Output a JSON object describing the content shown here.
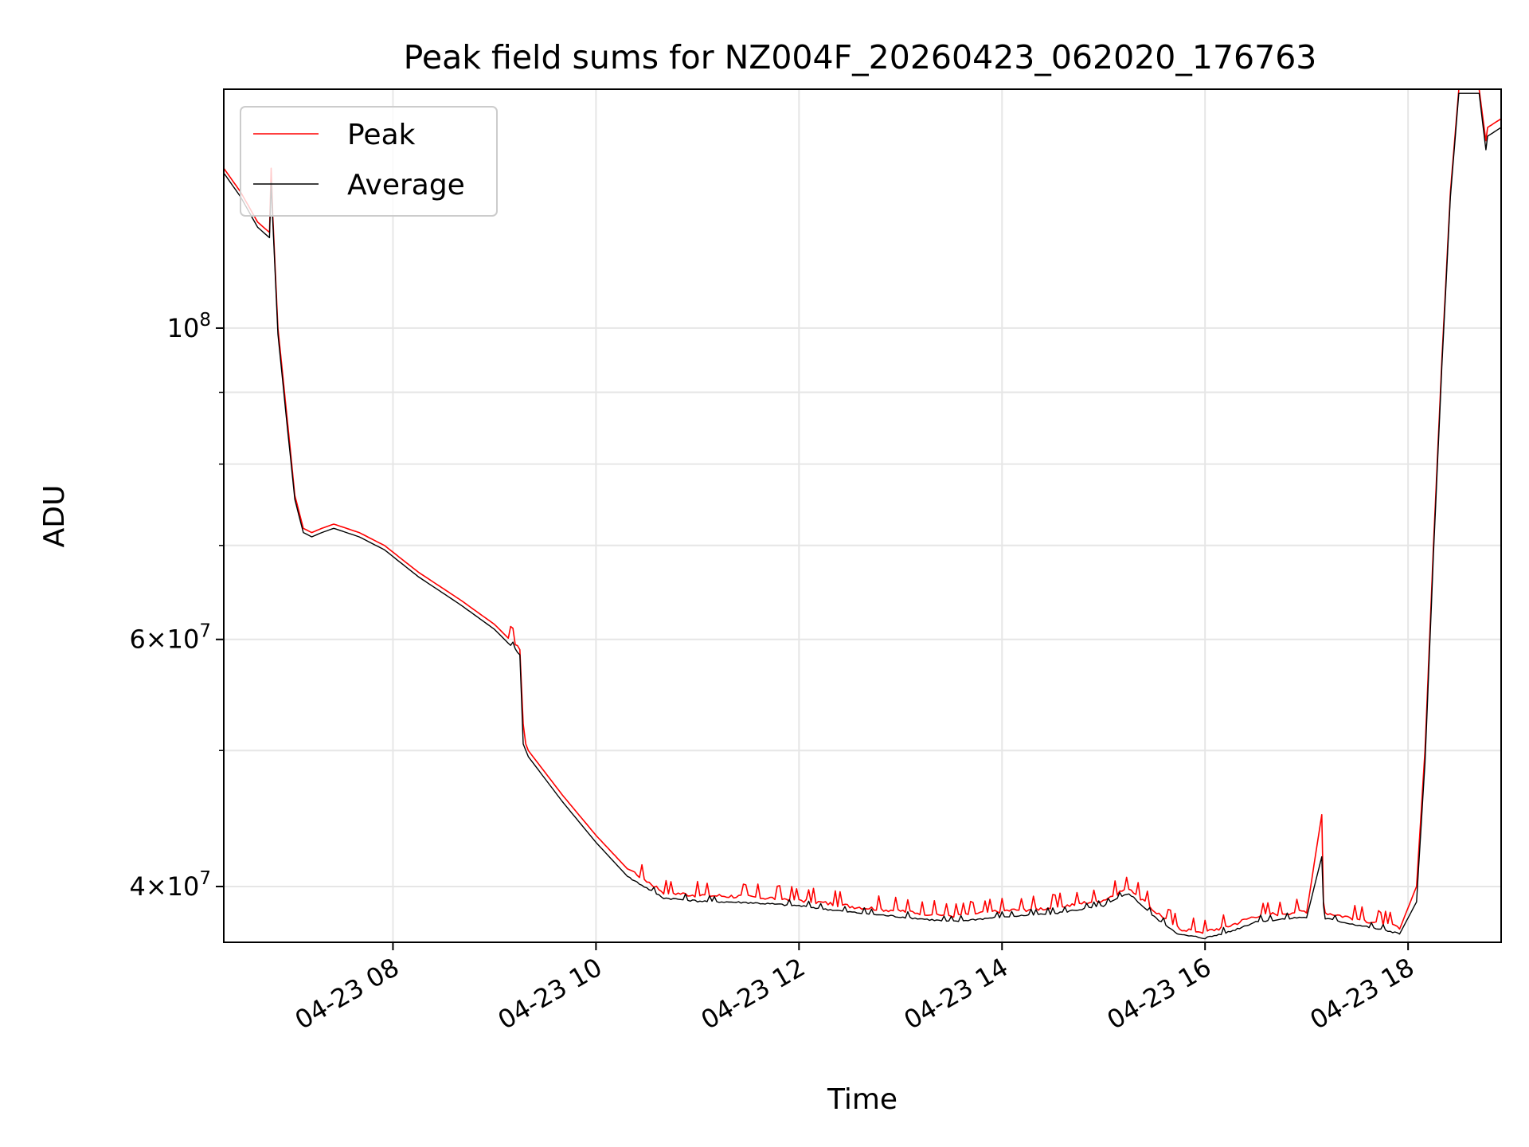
{
  "chart_data": {
    "type": "line",
    "title": "Peak field sums for NZ004F_20260423_062020_176763",
    "xlabel": "Time",
    "ylabel": "ADU",
    "x_type": "time",
    "xlim": [
      "2026-04-23 06:20",
      "2026-04-23 18:55"
    ],
    "ylim": [
      36500000,
      148000000
    ],
    "yscale": "log",
    "grid": true,
    "legend_position": "top-left",
    "x_ticks": [
      "2026-04-23 08:00",
      "2026-04-23 10:00",
      "2026-04-23 12:00",
      "2026-04-23 14:00",
      "2026-04-23 16:00",
      "2026-04-23 18:00"
    ],
    "x_tick_labels": [
      "04-23 08",
      "04-23 10",
      "04-23 12",
      "04-23 14",
      "04-23 16",
      "04-23 18"
    ],
    "y_major_ticks": [
      {
        "value": 100000000,
        "mantissa": "",
        "exponent": "8"
      },
      {
        "value": 60000000,
        "mantissa": "6",
        "exponent": "7"
      },
      {
        "value": 40000000,
        "mantissa": "4",
        "exponent": "7"
      }
    ],
    "y_minor_ticks": [
      90000000,
      80000000,
      70000000,
      50000000
    ],
    "series": [
      {
        "name": "Peak",
        "color": "#ff0000",
        "x": [
          "2026-04-23 06:20",
          "2026-04-23 06:30",
          "2026-04-23 06:40",
          "2026-04-23 06:47",
          "2026-04-23 06:48",
          "2026-04-23 06:49",
          "2026-04-23 06:52",
          "2026-04-23 06:58",
          "2026-04-23 07:02",
          "2026-04-23 07:07",
          "2026-04-23 07:12",
          "2026-04-23 07:18",
          "2026-04-23 07:25",
          "2026-04-23 07:40",
          "2026-04-23 07:55",
          "2026-04-23 08:15",
          "2026-04-23 08:40",
          "2026-04-23 09:00",
          "2026-04-23 09:15",
          "2026-04-23 09:17",
          "2026-04-23 09:20",
          "2026-04-23 09:40",
          "2026-04-23 10:00",
          "2026-04-23 10:20",
          "2026-04-23 10:40",
          "2026-04-23 11:00",
          "2026-04-23 11:30",
          "2026-04-23 12:00",
          "2026-04-23 12:30",
          "2026-04-23 13:00",
          "2026-04-23 13:30",
          "2026-04-23 14:00",
          "2026-04-23 14:30",
          "2026-04-23 15:00",
          "2026-04-23 15:15",
          "2026-04-23 15:30",
          "2026-04-23 15:45",
          "2026-04-23 16:00",
          "2026-04-23 16:15",
          "2026-04-23 16:30",
          "2026-04-23 17:00",
          "2026-04-23 17:09",
          "2026-04-23 17:10",
          "2026-04-23 17:11",
          "2026-04-23 17:30",
          "2026-04-23 17:55",
          "2026-04-23 18:05",
          "2026-04-23 18:10",
          "2026-04-23 18:15",
          "2026-04-23 18:20",
          "2026-04-23 18:25",
          "2026-04-23 18:30",
          "2026-04-23 18:38",
          "2026-04-23 18:42",
          "2026-04-23 18:46",
          "2026-04-23 18:47",
          "2026-04-23 18:55"
        ],
        "values": [
          130000000,
          125000000,
          119000000,
          117000000,
          130000000,
          120000000,
          100000000,
          85000000,
          76000000,
          72000000,
          71500000,
          72000000,
          72500000,
          71500000,
          70000000,
          67000000,
          64000000,
          61500000,
          59000000,
          51000000,
          50000000,
          46500000,
          43500000,
          41000000,
          39500000,
          39300000,
          39200000,
          39000000,
          38600000,
          38300000,
          38000000,
          38300000,
          38500000,
          39000000,
          39800000,
          38300000,
          37200000,
          37000000,
          37400000,
          38000000,
          38300000,
          45000000,
          39000000,
          38200000,
          37800000,
          37300000,
          40000000,
          50000000,
          70000000,
          95000000,
          125000000,
          148000000,
          148000000,
          148000000,
          136000000,
          139000000,
          141000000
        ]
      },
      {
        "name": "Average",
        "color": "#000000",
        "x": [
          "2026-04-23 06:20",
          "2026-04-23 06:30",
          "2026-04-23 06:40",
          "2026-04-23 06:47",
          "2026-04-23 06:48",
          "2026-04-23 06:49",
          "2026-04-23 06:52",
          "2026-04-23 06:58",
          "2026-04-23 07:02",
          "2026-04-23 07:07",
          "2026-04-23 07:12",
          "2026-04-23 07:18",
          "2026-04-23 07:25",
          "2026-04-23 07:40",
          "2026-04-23 07:55",
          "2026-04-23 08:15",
          "2026-04-23 08:40",
          "2026-04-23 09:00",
          "2026-04-23 09:15",
          "2026-04-23 09:17",
          "2026-04-23 09:20",
          "2026-04-23 09:40",
          "2026-04-23 10:00",
          "2026-04-23 10:20",
          "2026-04-23 10:40",
          "2026-04-23 11:00",
          "2026-04-23 11:30",
          "2026-04-23 12:00",
          "2026-04-23 12:30",
          "2026-04-23 13:00",
          "2026-04-23 13:30",
          "2026-04-23 14:00",
          "2026-04-23 14:30",
          "2026-04-23 15:00",
          "2026-04-23 15:15",
          "2026-04-23 15:30",
          "2026-04-23 15:45",
          "2026-04-23 16:00",
          "2026-04-23 16:15",
          "2026-04-23 16:30",
          "2026-04-23 17:00",
          "2026-04-23 17:09",
          "2026-04-23 17:10",
          "2026-04-23 17:11",
          "2026-04-23 17:30",
          "2026-04-23 17:55",
          "2026-04-23 18:05",
          "2026-04-23 18:10",
          "2026-04-23 18:15",
          "2026-04-23 18:20",
          "2026-04-23 18:25",
          "2026-04-23 18:30",
          "2026-04-23 18:38",
          "2026-04-23 18:42",
          "2026-04-23 18:46",
          "2026-04-23 18:47",
          "2026-04-23 18:55"
        ],
        "values": [
          129000000,
          124000000,
          118000000,
          116000000,
          127000000,
          119000000,
          99000000,
          84000000,
          75500000,
          71500000,
          71000000,
          71500000,
          72000000,
          71000000,
          69500000,
          66500000,
          63500000,
          61000000,
          58500000,
          50500000,
          49500000,
          46000000,
          43000000,
          40500000,
          39200000,
          39000000,
          38900000,
          38700000,
          38300000,
          38000000,
          37700000,
          38000000,
          38200000,
          38700000,
          39500000,
          38000000,
          36900000,
          36700000,
          37100000,
          37700000,
          38000000,
          42000000,
          38700000,
          37900000,
          37500000,
          37000000,
          39000000,
          49000000,
          69000000,
          94000000,
          124000000,
          147000000,
          147000000,
          147000000,
          134000000,
          137000000,
          139000000
        ]
      }
    ]
  }
}
